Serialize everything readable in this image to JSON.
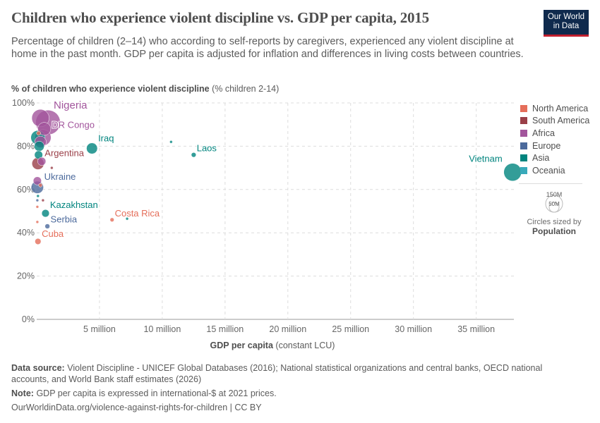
{
  "title": "Children who experience violent discipline vs. GDP per capita, 2015",
  "subtitle": "Percentage of children (2–14) who according to self-reports by caregivers, experienced any violent discipline at home in the past month. GDP per capita is adjusted for inflation and differences in living costs between countries.",
  "logo": {
    "line1": "Our World",
    "line2": "in Data"
  },
  "chart_data": {
    "type": "scatter",
    "ylabel_bold": "% of children who experience violent discipline",
    "ylabel_unit": "(% children 2-14)",
    "xlabel_bold": "GDP per capita",
    "xlabel_unit": "(constant LCU)",
    "xlim": [
      0,
      38000000
    ],
    "ylim": [
      0,
      100
    ],
    "xticks": [
      {
        "v": 5000000,
        "l": "5 million"
      },
      {
        "v": 10000000,
        "l": "10 million"
      },
      {
        "v": 15000000,
        "l": "15 million"
      },
      {
        "v": 20000000,
        "l": "20 million"
      },
      {
        "v": 25000000,
        "l": "25 million"
      },
      {
        "v": 30000000,
        "l": "30 million"
      },
      {
        "v": 35000000,
        "l": "35 million"
      }
    ],
    "yticks": [
      {
        "v": 0,
        "l": "0%"
      },
      {
        "v": 20,
        "l": "20%"
      },
      {
        "v": 40,
        "l": "40%"
      },
      {
        "v": 60,
        "l": "60%"
      },
      {
        "v": 80,
        "l": "80%"
      },
      {
        "v": 100,
        "l": "100%"
      }
    ],
    "grid": true,
    "regions": [
      {
        "name": "North America",
        "color": "#e56e5a"
      },
      {
        "name": "South America",
        "color": "#9a3f48"
      },
      {
        "name": "Africa",
        "color": "#a2559c"
      },
      {
        "name": "Europe",
        "color": "#4c6a9c"
      },
      {
        "name": "Asia",
        "color": "#00847e"
      },
      {
        "name": "Oceania",
        "color": "#38aaba"
      }
    ],
    "points": [
      {
        "name": "Nigeria",
        "x": 900000,
        "y": 91,
        "region": "Africa",
        "pop": 180
      },
      {
        "name": "",
        "x": 300000,
        "y": 93,
        "region": "Africa",
        "pop": 90
      },
      {
        "name": "",
        "x": 600000,
        "y": 88,
        "region": "Africa",
        "pop": 50
      },
      {
        "name": "DR Congo",
        "x": 500000,
        "y": 84,
        "region": "Africa",
        "pop": 77
      },
      {
        "name": "",
        "x": 100000,
        "y": 84,
        "region": "Asia",
        "pop": 60
      },
      {
        "name": "",
        "x": 200000,
        "y": 80,
        "region": "Asia",
        "pop": 30
      },
      {
        "name": "",
        "x": 300000,
        "y": 82,
        "region": "Africa",
        "pop": 40
      },
      {
        "name": "",
        "x": 150000,
        "y": 86,
        "region": "North America",
        "pop": 5
      },
      {
        "name": "",
        "x": 150000,
        "y": 76,
        "region": "Asia",
        "pop": 20
      },
      {
        "name": "Iraq",
        "x": 4400000,
        "y": 79,
        "region": "Asia",
        "pop": 36
      },
      {
        "name": "",
        "x": 10700000,
        "y": 82,
        "region": "Asia",
        "pop": 2
      },
      {
        "name": "Laos",
        "x": 12500000,
        "y": 76,
        "region": "Asia",
        "pop": 6.7
      },
      {
        "name": "Vietnam",
        "x": 37900000,
        "y": 68,
        "region": "Asia",
        "pop": 93
      },
      {
        "name": "Argentina",
        "x": 100000,
        "y": 72,
        "region": "South America",
        "pop": 43
      },
      {
        "name": "",
        "x": 400000,
        "y": 73,
        "region": "Africa",
        "pop": 20
      },
      {
        "name": "",
        "x": 1200000,
        "y": 70,
        "region": "South America",
        "pop": 1
      },
      {
        "name": "Ukraine",
        "x": 50000,
        "y": 61,
        "region": "Europe",
        "pop": 45
      },
      {
        "name": "",
        "x": 50000,
        "y": 64,
        "region": "Africa",
        "pop": 20
      },
      {
        "name": "",
        "x": 300000,
        "y": 62,
        "region": "North America",
        "pop": 4
      },
      {
        "name": "",
        "x": 100000,
        "y": 57,
        "region": "Asia",
        "pop": 2
      },
      {
        "name": "",
        "x": 50000,
        "y": 55,
        "region": "Europe",
        "pop": 1
      },
      {
        "name": "",
        "x": 500000,
        "y": 55,
        "region": "South America",
        "pop": 1
      },
      {
        "name": "",
        "x": 50000,
        "y": 52,
        "region": "North America",
        "pop": 2
      },
      {
        "name": "Kazakhstan",
        "x": 700000,
        "y": 49,
        "region": "Asia",
        "pop": 17
      },
      {
        "name": "",
        "x": 50000,
        "y": 45,
        "region": "North America",
        "pop": 1
      },
      {
        "name": "Serbia",
        "x": 850000,
        "y": 43,
        "region": "Europe",
        "pop": 7
      },
      {
        "name": "Costa Rica",
        "x": 6000000,
        "y": 46,
        "region": "North America",
        "pop": 4.8
      },
      {
        "name": "",
        "x": 7200000,
        "y": 46.5,
        "region": "Asia",
        "pop": 0.3
      },
      {
        "name": "Cuba",
        "x": 100000,
        "y": 36,
        "region": "North America",
        "pop": 11
      }
    ],
    "size_legend": {
      "big": "150M",
      "small": "50M",
      "caption": "Circles sized by",
      "variable": "Population"
    }
  },
  "footer": {
    "source_label": "Data source:",
    "source": "Violent Discipline - UNICEF Global Databases (2016); National statistical organizations and central banks, OECD national accounts, and World Bank staff estimates (2026)",
    "note_label": "Note:",
    "note": "GDP per capita is expressed in international-$ at 2021 prices.",
    "url": "OurWorldinData.org/violence-against-rights-for-children | CC BY"
  }
}
